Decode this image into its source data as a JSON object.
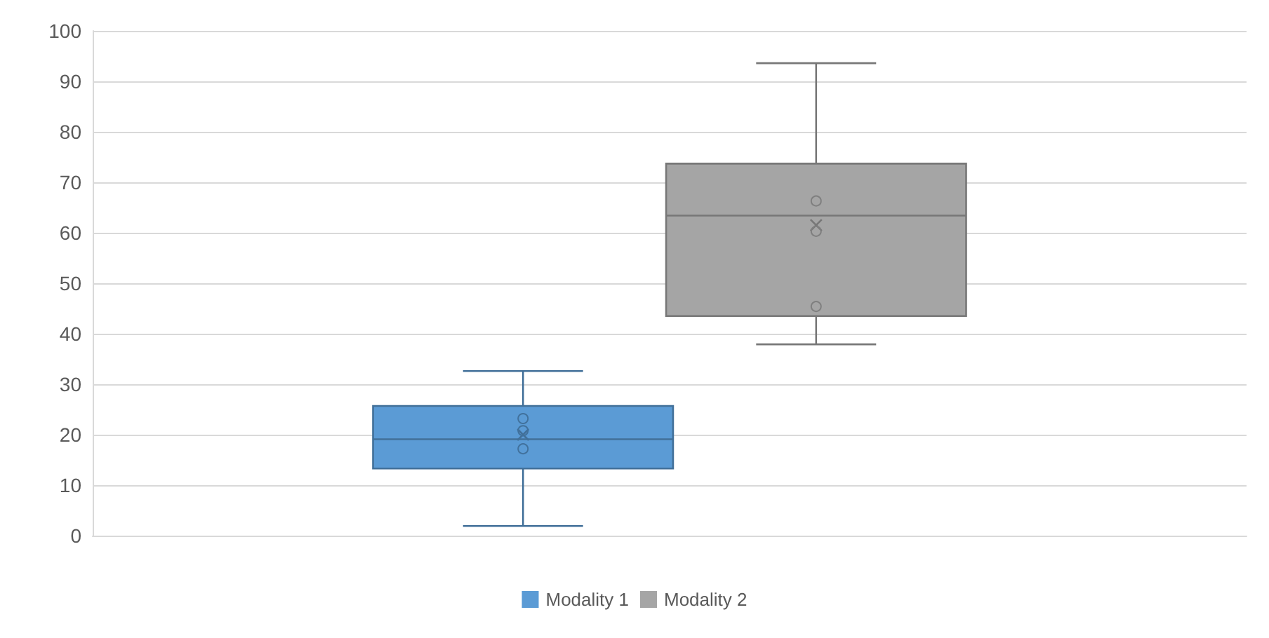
{
  "chart_data": {
    "type": "box",
    "categories": [
      null
    ],
    "series": [
      {
        "name": "Modality 1",
        "color": "#5b9bd5",
        "boxes": [
          {
            "low": 1.9,
            "q1": 13.3,
            "median": 19.1,
            "q3": 25.7,
            "high": 32.6,
            "mean": 20
          }
        ]
      },
      {
        "name": "Modality 2",
        "color": "#a5a5a5",
        "boxes": [
          {
            "low": 37.9,
            "q1": 43.5,
            "median": 63.4,
            "q3": 73.7,
            "high": 93.6,
            "mean": 61.5
          }
        ]
      },
      {
        "type": "scatter",
        "color": "#41719c",
        "x": [
          null,
          null,
          null
        ],
        "values": [
          23.2,
          20.8,
          17.2
        ]
      },
      {
        "type": "scatter",
        "color": "#7f7f7f",
        "x": [
          null,
          null,
          null
        ],
        "values": [
          66.3,
          60.3,
          45.4
        ]
      }
    ],
    "ylim": [
      0,
      100
    ],
    "yticks": [
      0,
      10,
      20,
      30,
      40,
      50,
      60,
      70,
      80,
      90,
      100
    ],
    "grid": "y",
    "legend": "bottom",
    "marker": "circle"
  }
}
